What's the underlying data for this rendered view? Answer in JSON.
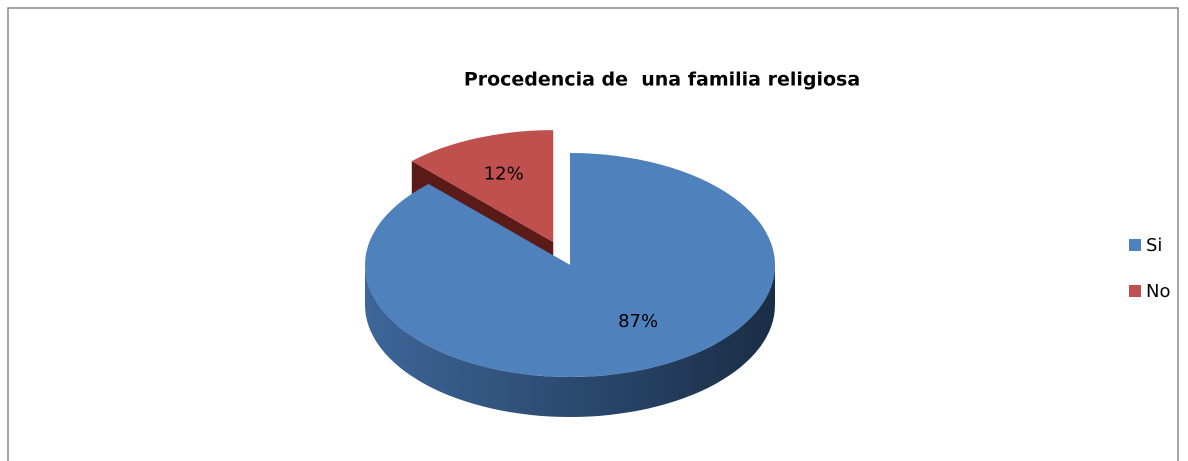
{
  "chart_data": {
    "type": "pie",
    "title": "Procedencia de  una familia religiosa",
    "categories": [
      "Si",
      "No"
    ],
    "values": [
      87,
      12
    ],
    "value_labels": [
      "87%",
      "12%"
    ],
    "colors": [
      "#4f81bd",
      "#c0504d"
    ],
    "legend": "right"
  }
}
